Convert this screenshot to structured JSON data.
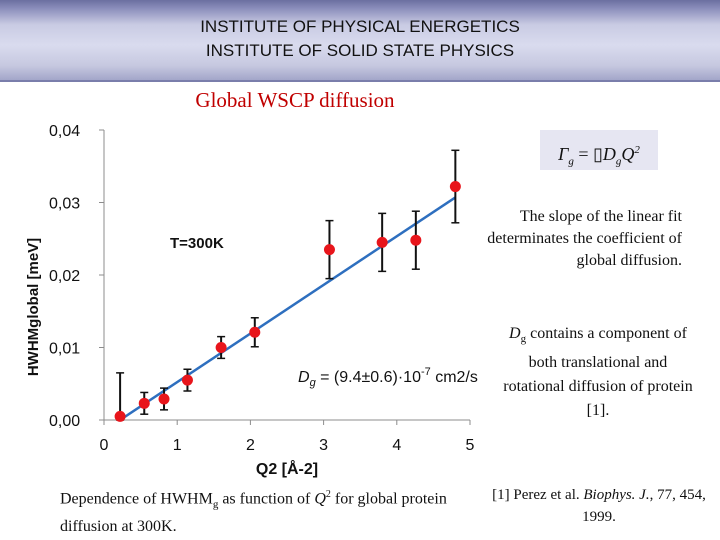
{
  "header": {
    "line1": "INSTITUTE OF PHYSICAL ENERGETICS",
    "line2": "INSTITUTE OF SOLID STATE PHYSICS"
  },
  "slide_title": "Global WSCP diffusion",
  "formula": {
    "lhs": "Γ",
    "lhs_sub": "g",
    "eq": " = ",
    "box": "▯",
    "d": "D",
    "d_sub": "g",
    "q": "Q",
    "q_sup": "2"
  },
  "notes": {
    "slope": "The slope of the linear fit  determinates the coefficient of global diffusion.",
    "dg_prefix": "D",
    "dg_sub": "g",
    "dg_rest": " contains a component of both translational and rotational diffusion of protein [1].",
    "ref_prefix": "[1] Perez et al. ",
    "ref_journal": "Biophys. J.",
    "ref_rest": ", 77, 454, 1999.",
    "caption_a": "Dependence of HWHM",
    "caption_sub": "g",
    "caption_b": " as function of ",
    "caption_q": "Q",
    "caption_sup": "2",
    "caption_c": " for global protein diffusion at 300K."
  },
  "colors": {
    "title_red": "#c00000",
    "fit_line": "#2e6fbf",
    "points": "#e8151b"
  },
  "chart_data": {
    "type": "scatter",
    "title": "",
    "xlabel": "Q2 [Å-2]",
    "ylabel": "HWHMglobal [meV]",
    "xlim": [
      0,
      5
    ],
    "ylim": [
      0,
      0.04
    ],
    "xticks": [
      "0",
      "1",
      "2",
      "3",
      "4",
      "5"
    ],
    "yticks": [
      "0,00",
      "0,01",
      "0,02",
      "0,03",
      "0,04"
    ],
    "annotation_temp": "T=300K",
    "annotation_dg_prefix": "D",
    "annotation_dg_sub": "g",
    "annotation_dg_rest": " = (9.4±0.6)·10",
    "annotation_dg_exp": "-7",
    "annotation_dg_unit": " cm2/s",
    "series": [
      {
        "name": "data",
        "x": [
          0.22,
          0.55,
          0.82,
          1.14,
          1.6,
          2.06,
          3.08,
          3.8,
          4.26,
          4.8
        ],
        "y": [
          0.0005,
          0.0023,
          0.0029,
          0.0055,
          0.01,
          0.0121,
          0.0235,
          0.0245,
          0.0248,
          0.0322
        ],
        "err": [
          0.006,
          0.0015,
          0.0015,
          0.0015,
          0.0015,
          0.002,
          0.004,
          0.004,
          0.004,
          0.005
        ]
      }
    ],
    "fit": {
      "x": [
        0.22,
        4.8
      ],
      "y": [
        0.0,
        0.0307
      ]
    }
  }
}
